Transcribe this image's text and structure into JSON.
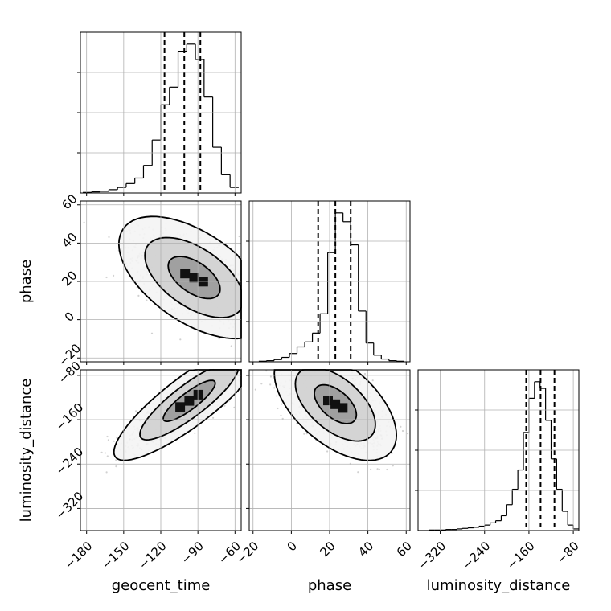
{
  "chart_data": {
    "type": "corner",
    "variables": [
      "geocent_time",
      "phase",
      "luminosity_distance"
    ],
    "grid": true,
    "marginals": [
      {
        "variable": "geocent_time",
        "bin_edges": [
          -183,
          -176,
          -169,
          -162,
          -155,
          -148,
          -141,
          -134,
          -127,
          -120,
          -113,
          -106,
          -99,
          -92,
          -85,
          -78,
          -71,
          -64,
          -57
        ],
        "counts": [
          1,
          2,
          3,
          6,
          10,
          17,
          27,
          50,
          96,
          160,
          192,
          256,
          270,
          242,
          174,
          83,
          33,
          10
        ],
        "quantile_lines": [
          -117,
          -101,
          -88
        ]
      },
      {
        "variable": "phase",
        "bin_edges": [
          -17,
          -13,
          -9,
          -5,
          -1,
          3,
          7,
          11,
          15,
          19,
          23,
          27,
          31,
          35,
          39,
          43,
          47,
          51,
          55,
          59
        ],
        "counts": [
          1,
          2,
          4,
          8,
          15,
          27,
          36,
          52,
          87,
          198,
          270,
          254,
          212,
          92,
          34,
          12,
          5,
          2,
          1
        ],
        "quantile_lines": [
          14,
          23,
          31
        ]
      },
      {
        "variable": "luminosity_distance",
        "bin_edges": [
          -360,
          -350,
          -340,
          -330,
          -320,
          -310,
          -300,
          -290,
          -280,
          -270,
          -260,
          -250,
          -240,
          -230,
          -220,
          -210,
          -200,
          -190,
          -180,
          -170,
          -160,
          -150,
          -140,
          -130,
          -120,
          -110,
          -100,
          -90,
          -80,
          -70
        ],
        "counts": [
          0,
          0,
          1,
          1,
          1,
          2,
          2,
          3,
          4,
          5,
          6,
          8,
          10,
          14,
          18,
          27,
          47,
          75,
          110,
          178,
          240,
          270,
          258,
          200,
          130,
          75,
          35,
          10,
          3
        ],
        "quantile_lines": [
          -165,
          -139,
          -114
        ]
      }
    ],
    "joint_2d": [
      {
        "x": "geocent_time",
        "y": "phase",
        "mode": [
          -93,
          22
        ],
        "sigma": [
          21,
          11
        ],
        "correlation": -0.55,
        "contour_levels": [
          "39%",
          "86%",
          "99%"
        ]
      },
      {
        "x": "geocent_time",
        "y": "luminosity_distance",
        "mode": [
          -97,
          -126
        ],
        "sigma": [
          21,
          37
        ],
        "correlation": 0.86,
        "contour_levels": [
          "39%",
          "86%",
          "99%"
        ]
      },
      {
        "x": "phase",
        "y": "luminosity_distance",
        "mode": [
          23,
          -132
        ],
        "sigma": [
          11,
          35
        ],
        "correlation": -0.55,
        "contour_levels": [
          "39%",
          "86%",
          "99%"
        ]
      }
    ],
    "axes": {
      "geocent_time": {
        "label": "geocent_time",
        "range": [
          -185,
          -55
        ],
        "ticks": [
          -180,
          -150,
          -120,
          -90,
          -60
        ],
        "tick_labels": [
          "−180",
          "−150",
          "−120",
          "−90",
          "−60"
        ]
      },
      "phase": {
        "label": "phase",
        "range": [
          -22,
          62
        ],
        "ticks": [
          -20,
          0,
          20,
          40,
          60
        ],
        "tick_labels": [
          "−20",
          "0",
          "20",
          "40",
          "60"
        ]
      },
      "luminosity_distance": {
        "label": "luminosity_distance",
        "range": [
          -360,
          -70
        ],
        "ticks": [
          -320,
          -240,
          -160,
          -80
        ],
        "tick_labels": [
          "−320",
          "−240",
          "−160",
          "−80"
        ]
      }
    }
  }
}
